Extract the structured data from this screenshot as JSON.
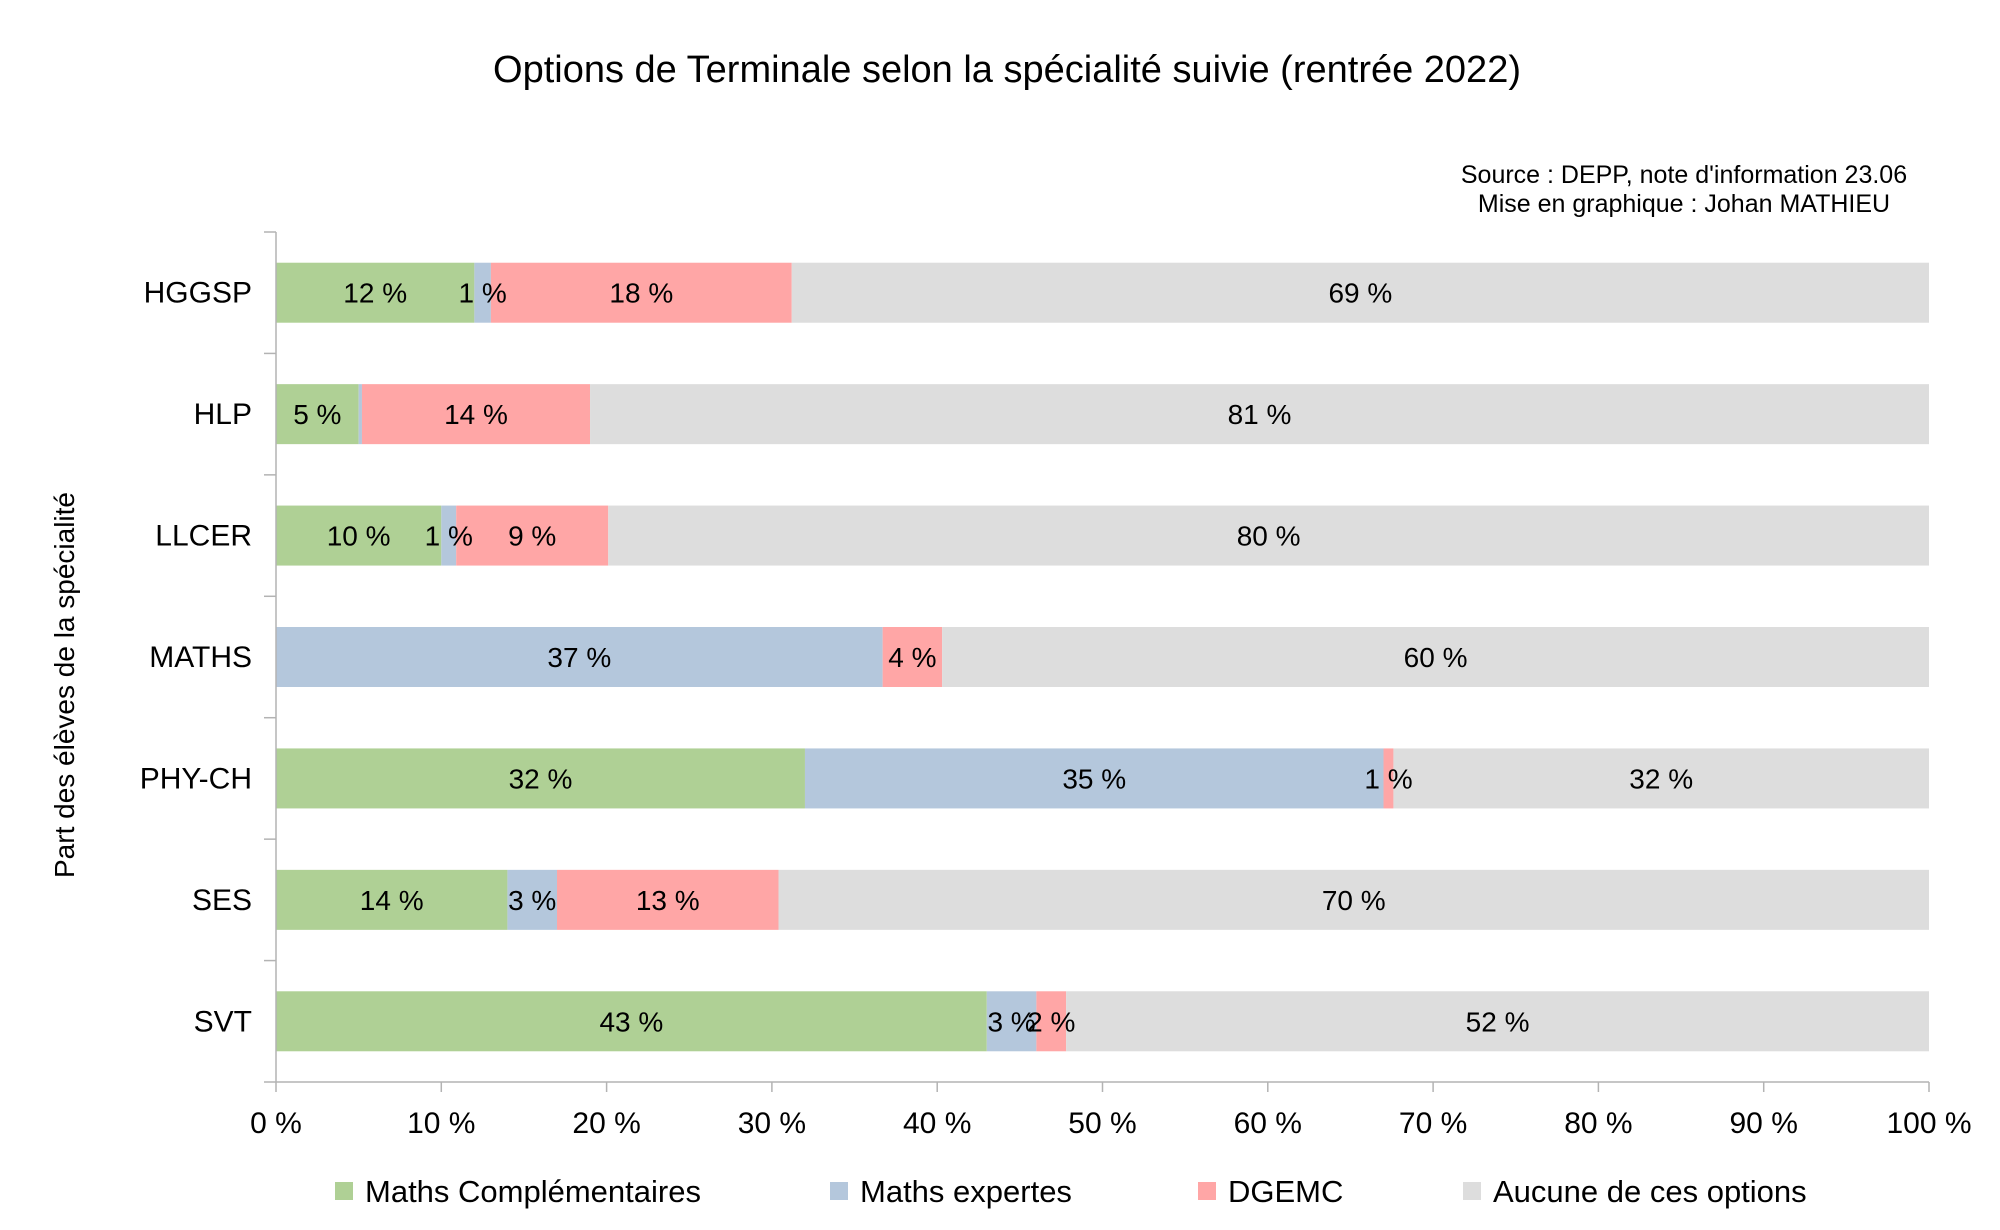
{
  "chart_data": {
    "type": "bar",
    "orientation": "horizontal",
    "stacked": true,
    "title": "Options de Terminale selon la spécialité suivie (rentrée 2022)",
    "source": "Source : DEPP, note d'information 23.06",
    "credit": "Mise en graphique : Johan MATHIEU",
    "ylabel": "Part des élèves de la spécialité",
    "xlabel": "",
    "xlim": [
      0,
      100
    ],
    "xticks": [
      "0 %",
      "10 %",
      "20 %",
      "30 %",
      "40 %",
      "50 %",
      "60 %",
      "70 %",
      "80 %",
      "90 %",
      "100 %"
    ],
    "categories": [
      "HGGSP",
      "HLP",
      "LLCER",
      "MATHS",
      "PHY-CH",
      "SES",
      "SVT"
    ],
    "series": [
      {
        "name": "Maths Complémentaires",
        "color": "#afd095",
        "values": [
          12,
          5,
          10,
          0,
          32,
          14,
          43
        ],
        "labels": [
          "12 %",
          "5 %",
          "10 %",
          "",
          "32 %",
          "14 %",
          "43 %"
        ]
      },
      {
        "name": "Maths expertes",
        "color": "#b4c7dc",
        "values": [
          1,
          0.2,
          0.9,
          36.7,
          35,
          3,
          3
        ],
        "labels": [
          "1 %",
          "",
          "1 %",
          "37 %",
          "35 %",
          "3 %",
          "3 %"
        ]
      },
      {
        "name": "DGEMC",
        "color": "#ffa6a6",
        "values": [
          18.2,
          13.8,
          9.2,
          3.6,
          0.6,
          13.4,
          1.8
        ],
        "labels": [
          "18 %",
          "14 %",
          "9 %",
          "4 %",
          "1 %",
          "13 %",
          "2 %"
        ]
      },
      {
        "name": "Aucune de ces options",
        "color": "#dddddd",
        "values": [
          68.8,
          81,
          79.9,
          59.7,
          32.4,
          69.6,
          52.2
        ],
        "labels": [
          "69 %",
          "81 %",
          "80 %",
          "60 %",
          "32 %",
          "70 %",
          "52 %"
        ]
      }
    ],
    "grid": false,
    "legend_position": "bottom"
  }
}
